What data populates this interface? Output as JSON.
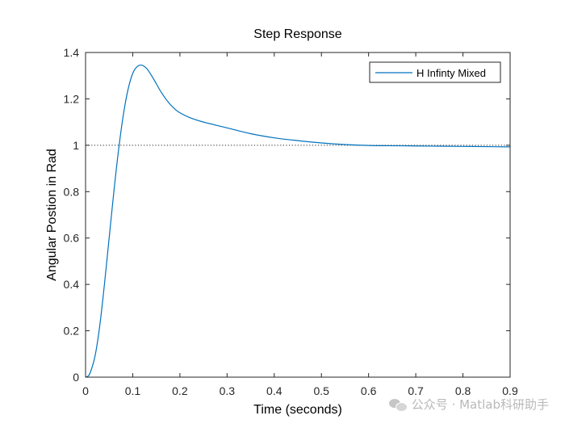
{
  "chart_data": {
    "type": "line",
    "title": "Step Response",
    "xlabel": "Time (seconds)",
    "ylabel": "Angular Postion in Rad",
    "xlim": [
      0,
      0.9
    ],
    "ylim": [
      0,
      1.4
    ],
    "xticks": [
      0,
      0.1,
      0.2,
      0.3,
      0.4,
      0.5,
      0.6,
      0.7,
      0.8,
      0.9
    ],
    "yticks": [
      0,
      0.2,
      0.4,
      0.6,
      0.8,
      1,
      1.2,
      1.4
    ],
    "xtick_labels": [
      "0",
      "0.1",
      "0.2",
      "0.3",
      "0.4",
      "0.5",
      "0.6",
      "0.7",
      "0.8",
      "0.9"
    ],
    "ytick_labels": [
      "0",
      "0.2",
      "0.4",
      "0.6",
      "0.8",
      "1",
      "1.2",
      "1.4"
    ],
    "grid": false,
    "legend_position": "top-right",
    "reference_line": {
      "y": 1,
      "style": "dotted"
    },
    "series": [
      {
        "name": "H Infinty Mixed",
        "color": "#0072bd",
        "x": [
          0,
          0.005,
          0.01,
          0.02,
          0.03,
          0.04,
          0.05,
          0.06,
          0.07,
          0.08,
          0.09,
          0.1,
          0.11,
          0.12,
          0.13,
          0.14,
          0.15,
          0.16,
          0.17,
          0.18,
          0.19,
          0.2,
          0.22,
          0.25,
          0.3,
          0.35,
          0.4,
          0.45,
          0.5,
          0.55,
          0.6,
          0.65,
          0.7,
          0.75,
          0.8,
          0.85,
          0.9
        ],
        "y": [
          0,
          0.004,
          0.02,
          0.09,
          0.22,
          0.4,
          0.6,
          0.8,
          0.98,
          1.13,
          1.24,
          1.31,
          1.34,
          1.345,
          1.33,
          1.3,
          1.265,
          1.23,
          1.2,
          1.175,
          1.155,
          1.14,
          1.12,
          1.1,
          1.075,
          1.05,
          1.032,
          1.02,
          1.01,
          1.003,
          0.999,
          0.998,
          0.997,
          0.996,
          0.995,
          0.994,
          0.993
        ]
      }
    ]
  },
  "watermark": {
    "text": "公众号 · Matlab科研助手",
    "icon": "wechat-icon"
  }
}
